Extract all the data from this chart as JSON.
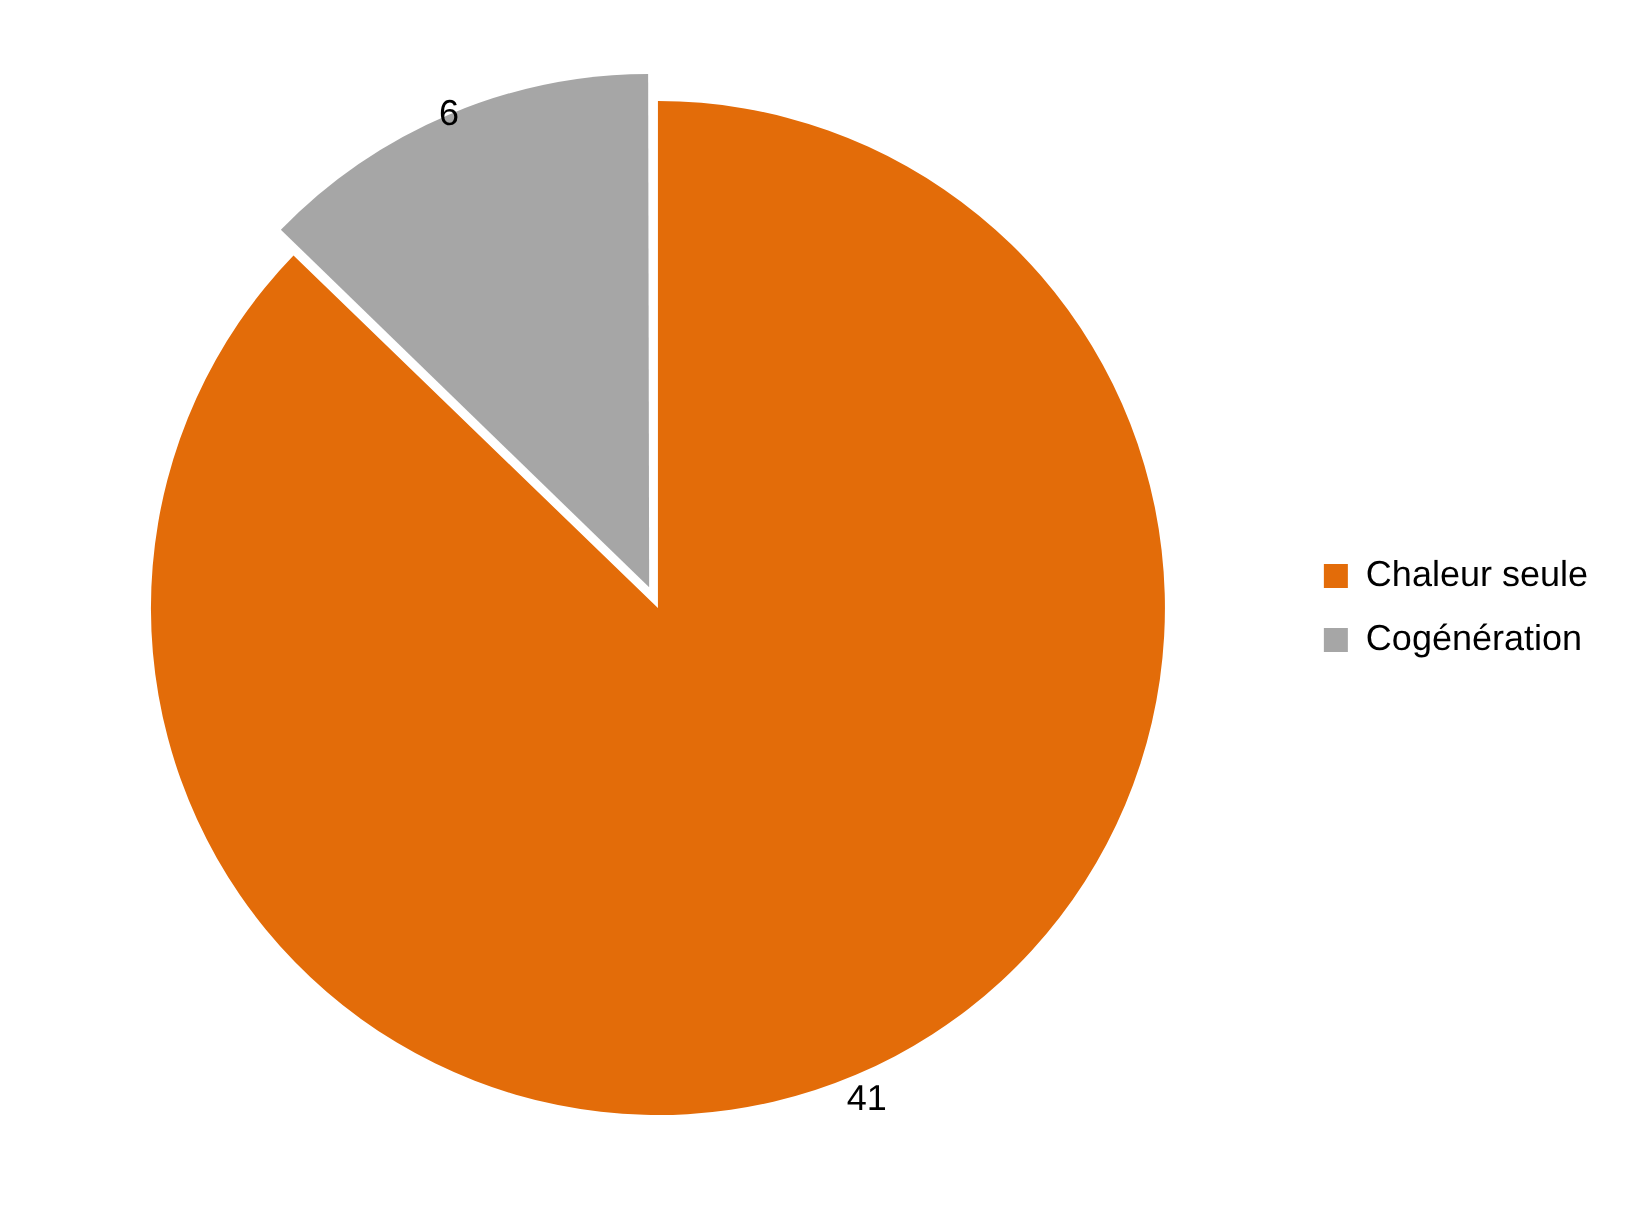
{
  "chart_data": {
    "type": "pie",
    "categories": [
      "Chaleur seule",
      "Cogénération"
    ],
    "values": [
      41,
      6
    ],
    "colors": [
      "#e36c09",
      "#a6a6a6"
    ],
    "data_labels": true,
    "legend": "right"
  }
}
